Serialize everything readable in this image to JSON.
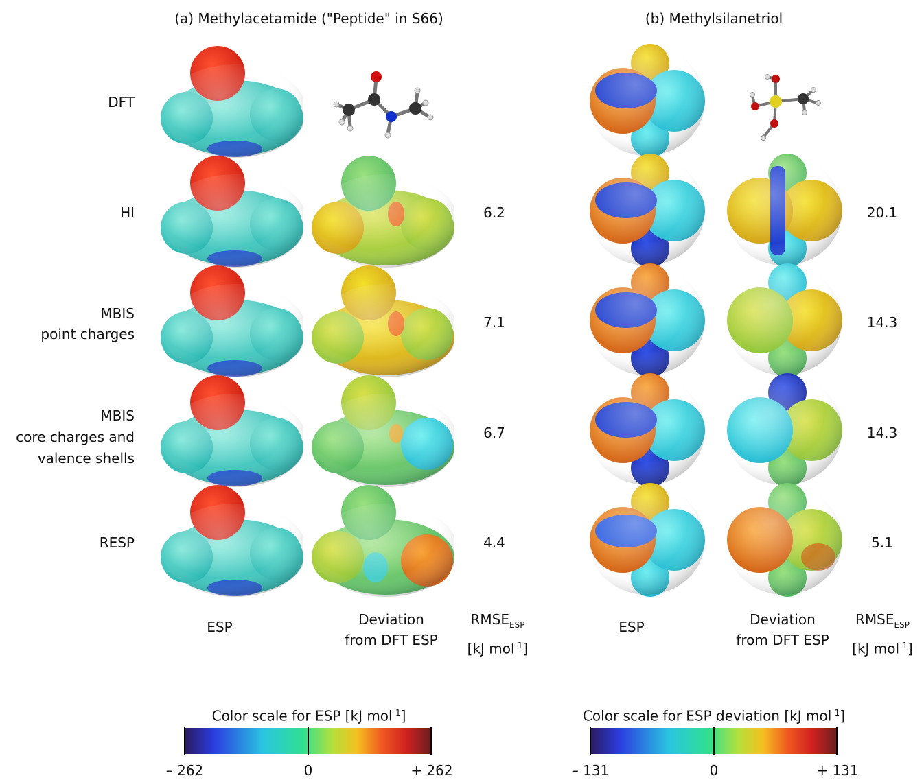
{
  "panels": {
    "a_title": "(a) Methylacetamide (\"Peptide\" in S66)",
    "b_title": "(b) Methylsilanetriol"
  },
  "rows": [
    {
      "label": [
        "DFT"
      ],
      "rmse_a": "",
      "rmse_b": ""
    },
    {
      "label": [
        "HI"
      ],
      "rmse_a": "6.2",
      "rmse_b": "20.1"
    },
    {
      "label": [
        "MBIS",
        "point charges"
      ],
      "rmse_a": "7.1",
      "rmse_b": "14.3"
    },
    {
      "label": [
        "MBIS",
        "core charges and",
        "valence shells"
      ],
      "rmse_a": "6.7",
      "rmse_b": "14.3"
    },
    {
      "label": [
        "RESP"
      ],
      "rmse_a": "4.4",
      "rmse_b": "5.1"
    }
  ],
  "columns": {
    "esp": "ESP",
    "deviation": [
      "Deviation",
      "from DFT ESP"
    ],
    "rmse": "RMSE",
    "rmse_sub": "ESP",
    "rmse_unit": "[kJ mol",
    "rmse_unit_sup": "-1",
    "rmse_unit_close": "]"
  },
  "colorbars": {
    "esp": {
      "title": "Color scale for ESP [kJ mol",
      "title_sup": "-1",
      "title_close": "]",
      "min": "– 262",
      "mid": "0",
      "max": "+ 262"
    },
    "deviation": {
      "title": "Color scale for ESP deviation [kJ mol",
      "title_sup": "-1",
      "title_close": "]",
      "min": "– 131",
      "mid": "0",
      "max": "+ 131"
    }
  },
  "colors": {
    "scale": [
      "#2a1a5e",
      "#2b3de0",
      "#2ac6e0",
      "#30e090",
      "#b4e03c",
      "#f4c020",
      "#f05a20",
      "#d02020",
      "#6a1f1f"
    ]
  }
}
